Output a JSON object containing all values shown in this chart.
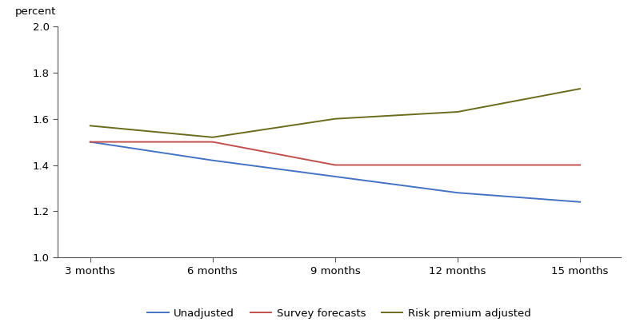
{
  "x_labels": [
    "3 months",
    "6 months",
    "9 months",
    "12 months",
    "15 months"
  ],
  "x_values": [
    3,
    6,
    9,
    12,
    15
  ],
  "unadjusted": [
    1.5,
    1.42,
    1.35,
    1.28,
    1.24
  ],
  "survey_forecasts": [
    1.5,
    1.5,
    1.4,
    1.4,
    1.4
  ],
  "risk_premium_adjusted": [
    1.57,
    1.52,
    1.6,
    1.63,
    1.73
  ],
  "unadjusted_color": "#4472C4",
  "survey_color": "#C0504D",
  "risk_premium_color": "#6B6B1E",
  "ylabel": "percent",
  "ylim": [
    1.0,
    2.0
  ],
  "yticks": [
    1.0,
    1.2,
    1.4,
    1.6,
    1.8,
    2.0
  ],
  "legend_labels": [
    "Unadjusted",
    "Survey forecasts",
    "Risk premium adjusted"
  ],
  "background_color": "#ffffff",
  "linewidth": 1.4,
  "spine_color": "#555555",
  "tick_color": "#555555",
  "label_fontsize": 9.5
}
